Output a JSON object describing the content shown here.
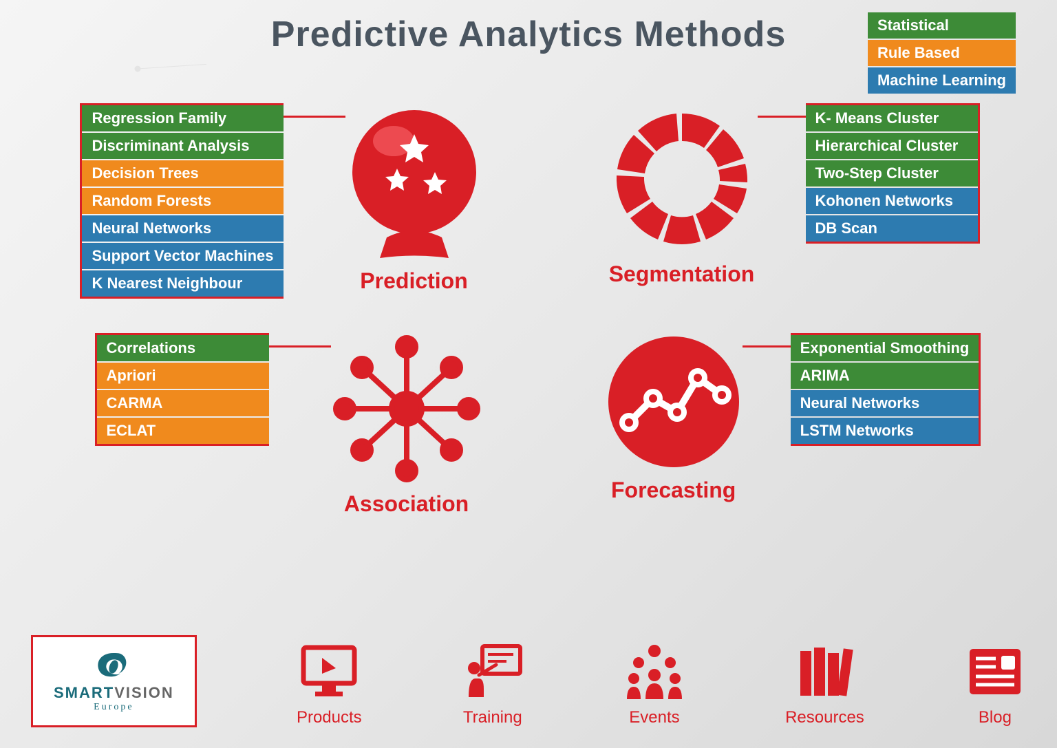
{
  "title": "Predictive Analytics Methods",
  "colors": {
    "red": "#d91f26",
    "green": "#3d8b37",
    "orange": "#f08a1d",
    "blue": "#2d7bb0",
    "title": "#4a5560",
    "logo_teal": "#1a6b7a"
  },
  "legend": [
    {
      "label": "Statistical",
      "color": "#3d8b37"
    },
    {
      "label": "Rule Based",
      "color": "#f08a1d"
    },
    {
      "label": "Machine Learning",
      "color": "#2d7bb0"
    }
  ],
  "quadrants": {
    "prediction": {
      "label": "Prediction",
      "icon": "crystal-ball",
      "items": [
        {
          "label": "Regression Family",
          "color": "#3d8b37"
        },
        {
          "label": "Discriminant Analysis",
          "color": "#3d8b37"
        },
        {
          "label": "Decision Trees",
          "color": "#f08a1d"
        },
        {
          "label": "Random Forests",
          "color": "#f08a1d"
        },
        {
          "label": "Neural Networks",
          "color": "#2d7bb0"
        },
        {
          "label": "Support Vector Machines",
          "color": "#2d7bb0"
        },
        {
          "label": "K Nearest Neighbour",
          "color": "#2d7bb0"
        }
      ]
    },
    "segmentation": {
      "label": "Segmentation",
      "icon": "donut",
      "items": [
        {
          "label": "K- Means Cluster",
          "color": "#3d8b37"
        },
        {
          "label": "Hierarchical Cluster",
          "color": "#3d8b37"
        },
        {
          "label": "Two-Step Cluster",
          "color": "#3d8b37"
        },
        {
          "label": "Kohonen Networks",
          "color": "#2d7bb0"
        },
        {
          "label": "DB Scan",
          "color": "#2d7bb0"
        }
      ]
    },
    "association": {
      "label": "Association",
      "icon": "network",
      "items": [
        {
          "label": "Correlations",
          "color": "#3d8b37"
        },
        {
          "label": "Apriori",
          "color": "#f08a1d"
        },
        {
          "label": "CARMA",
          "color": "#f08a1d"
        },
        {
          "label": "ECLAT",
          "color": "#f08a1d"
        }
      ]
    },
    "forecasting": {
      "label": "Forecasting",
      "icon": "trend",
      "items": [
        {
          "label": "Exponential Smoothing",
          "color": "#3d8b37"
        },
        {
          "label": "ARIMA",
          "color": "#3d8b37"
        },
        {
          "label": "Neural Networks",
          "color": "#2d7bb0"
        },
        {
          "label": "LSTM Networks",
          "color": "#2d7bb0"
        }
      ]
    }
  },
  "logo": {
    "line1": "SMART",
    "line2": "VISION",
    "sub": "Europe"
  },
  "nav": [
    {
      "label": "Products",
      "icon": "monitor"
    },
    {
      "label": "Training",
      "icon": "presentation"
    },
    {
      "label": "Events",
      "icon": "people"
    },
    {
      "label": "Resources",
      "icon": "books"
    },
    {
      "label": "Blog",
      "icon": "news"
    }
  ]
}
